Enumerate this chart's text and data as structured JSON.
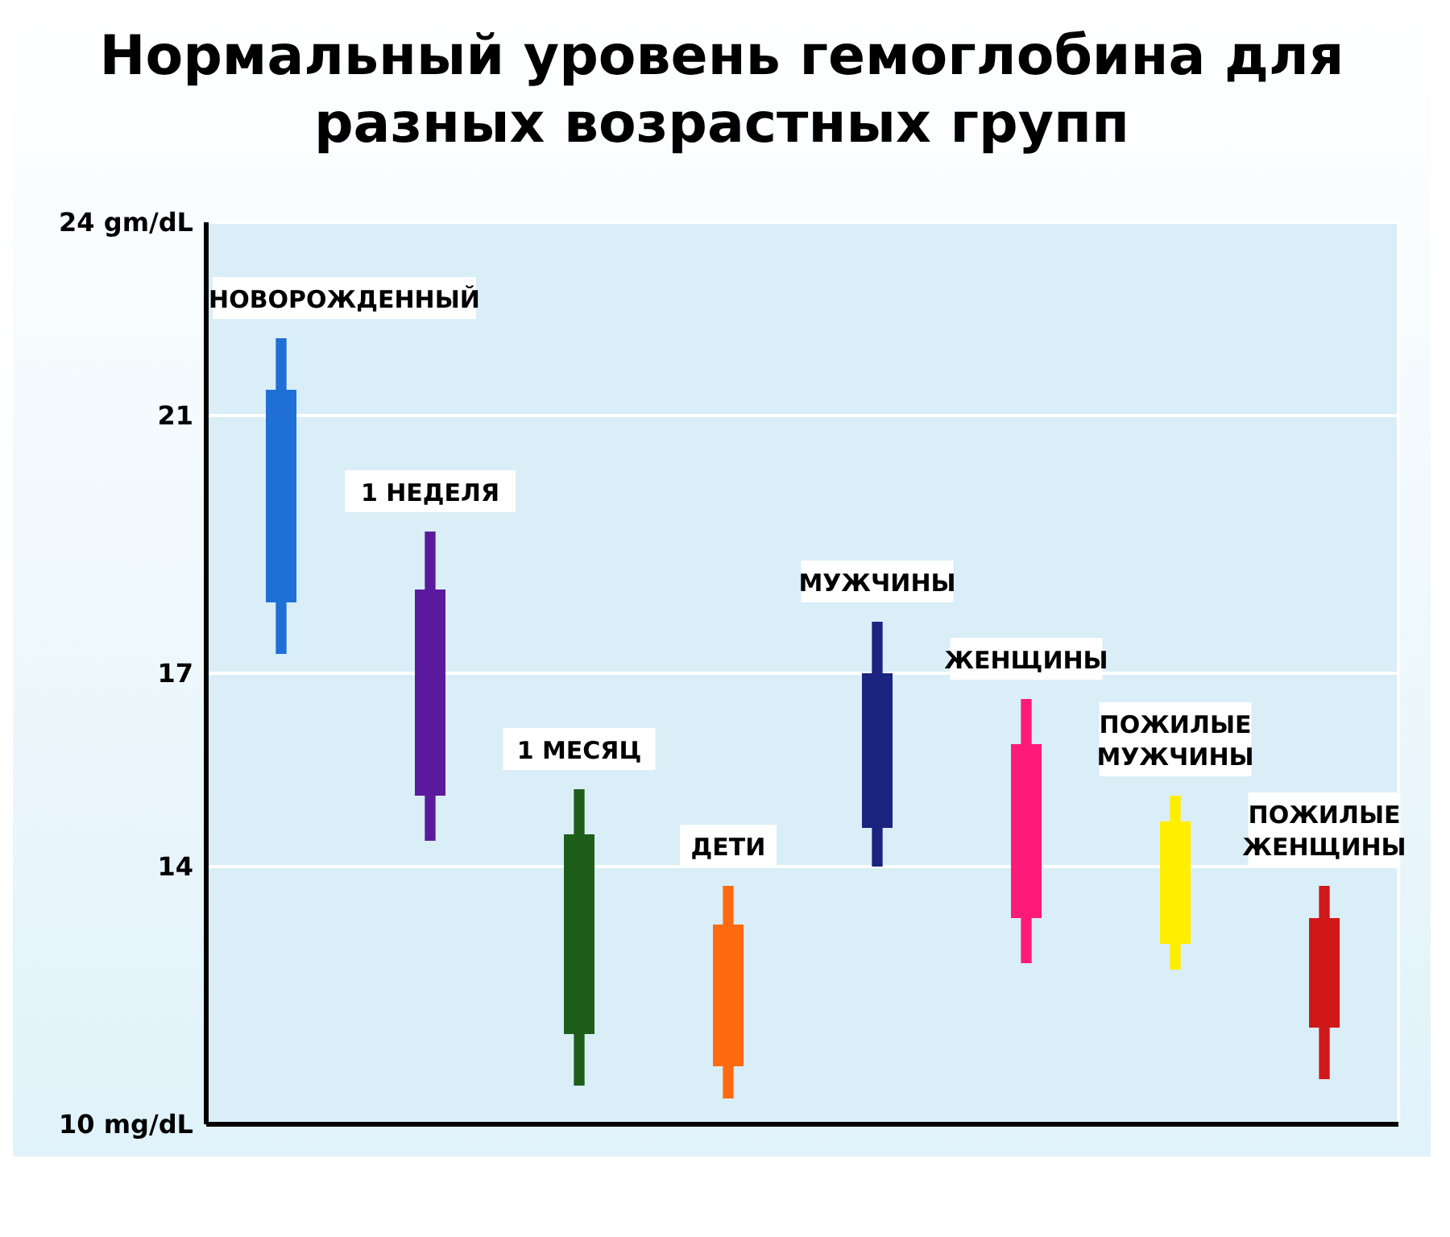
{
  "chart_data": {
    "type": "candlestick",
    "title": "Нормальный уровень гемоглобина для разных возрастных групп",
    "categories": [
      "НОВОРОЖДЕННЫЙ",
      "1 НЕДЕЛЯ",
      "1 МЕСЯЦ",
      "ДЕТИ",
      "МУЖЧИНЫ",
      "ЖЕНЩИНЫ",
      "ПОЖИЛЫЕ МУЖЧИНЫ",
      "ПОЖИЛЫЕ ЖЕНЩИНЫ"
    ],
    "ohlc": [
      [
        18.1,
        22.2,
        17.3,
        21.4
      ],
      [
        15.1,
        19.2,
        14.4,
        18.3
      ],
      [
        11.4,
        15.2,
        10.6,
        14.5
      ],
      [
        10.9,
        13.7,
        10.4,
        13.1
      ],
      [
        14.6,
        17.8,
        14.0,
        17.0
      ],
      [
        13.2,
        16.6,
        12.5,
        15.9
      ],
      [
        12.8,
        15.1,
        12.4,
        14.7
      ],
      [
        11.5,
        13.7,
        10.7,
        13.2
      ]
    ],
    "colors": [
      "#1f6fd6",
      "#5b1a9e",
      "#1e5e1a",
      "#ff6a10",
      "#1a237e",
      "#ff1a7a",
      "#ffee00",
      "#d01818"
    ],
    "ylim": [
      10,
      24
    ],
    "yticks": [
      {
        "value": 10,
        "label": "10 mg/dL"
      },
      14,
      17,
      21,
      {
        "value": 24,
        "label": "24 gm/dL"
      }
    ],
    "grid": true,
    "tick_labels": "y"
  }
}
